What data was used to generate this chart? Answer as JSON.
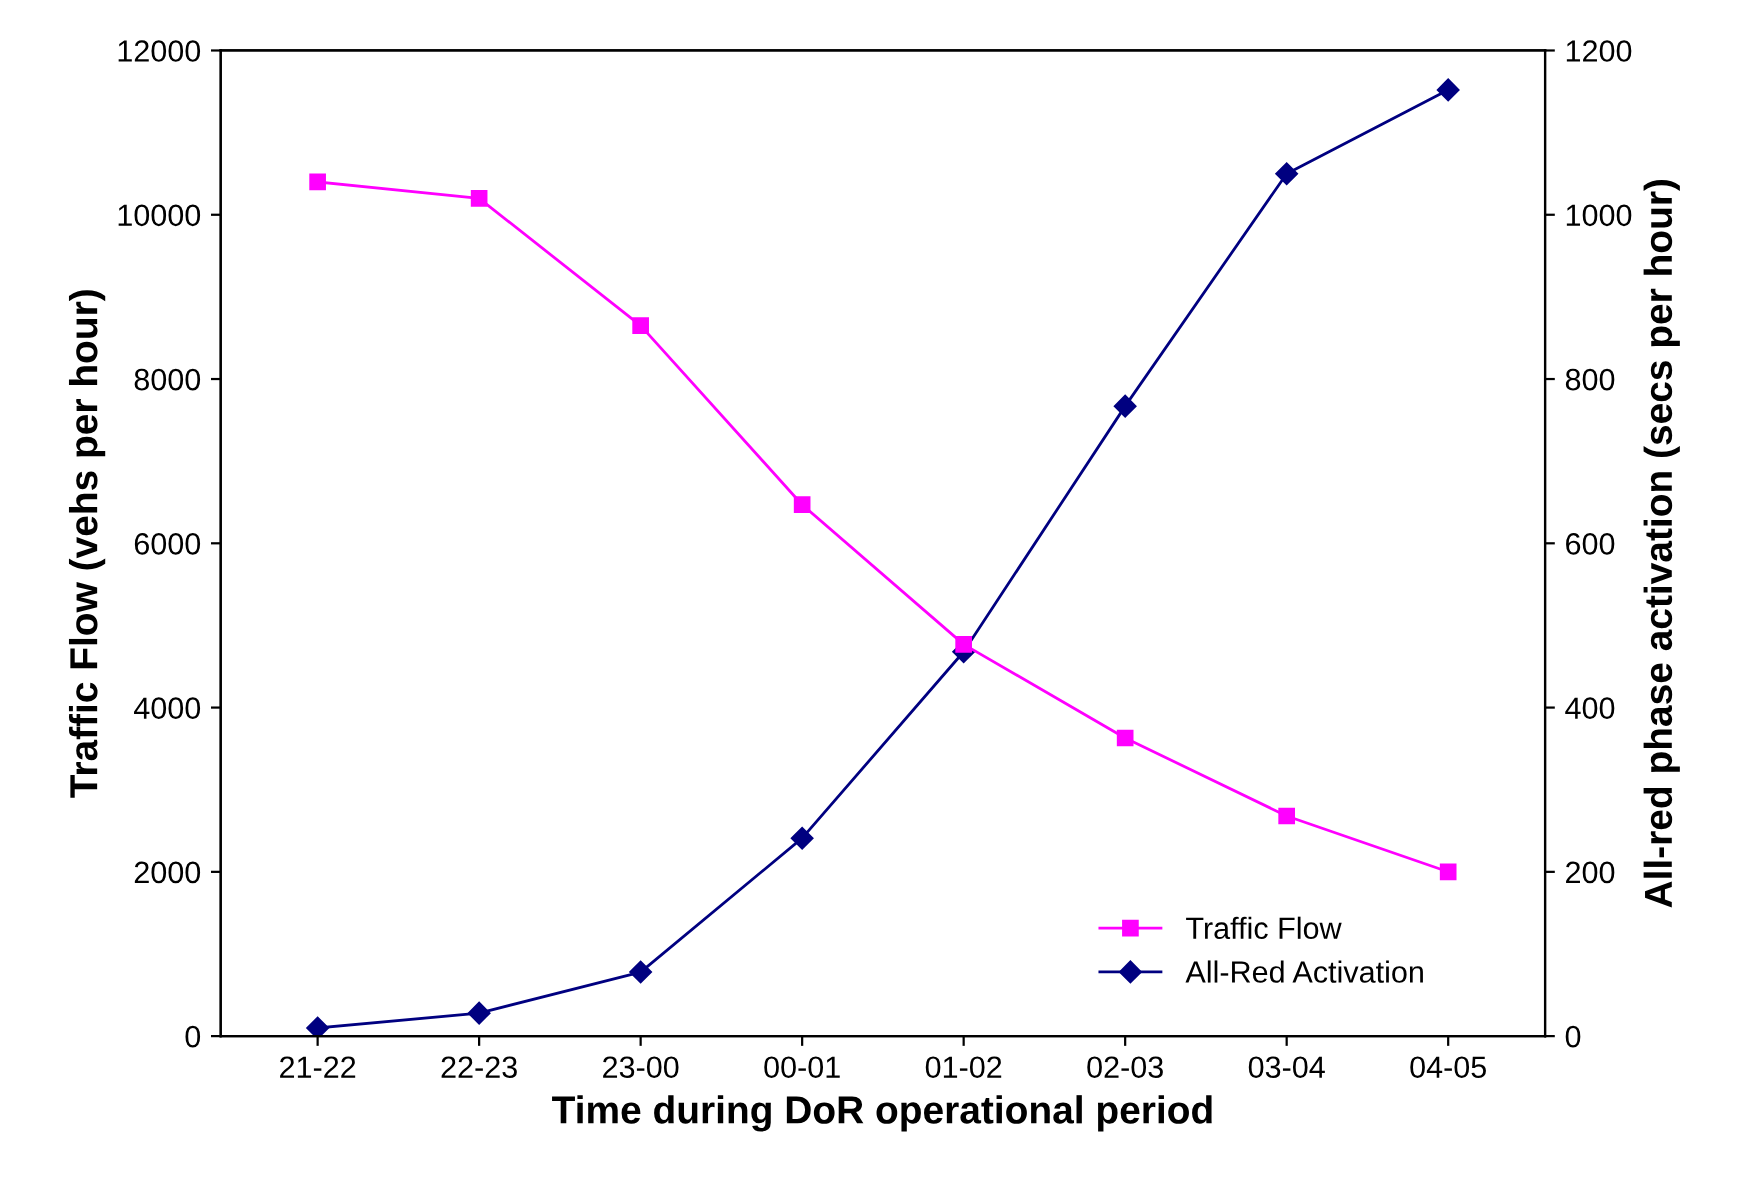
{
  "chart_data": {
    "type": "line",
    "xlabel": "Time during DoR operational period",
    "ylabel": "Traffic Flow (vehs per hour)",
    "y2label": "All-red phase activation (secs per hour)",
    "categories": [
      "21-22",
      "22-23",
      "23-00",
      "00-01",
      "01-02",
      "02-03",
      "03-04",
      "04-05"
    ],
    "series": [
      {
        "name": "Traffic Flow",
        "color": "#ff00ff",
        "marker": "square",
        "values": [
          10400,
          10200,
          8650,
          6470,
          4770,
          3630,
          2680,
          2000
        ]
      },
      {
        "name": "All-Red Activation",
        "color": "#000080",
        "marker": "diamond",
        "axis": "y2",
        "values": [
          10,
          28,
          78,
          241,
          468,
          767,
          1050,
          1152
        ]
      }
    ],
    "ylim": [
      0,
      12000
    ],
    "yticks": [
      0,
      2000,
      4000,
      6000,
      8000,
      10000,
      12000
    ],
    "y2lim": [
      0,
      1200
    ],
    "y2ticks": [
      0,
      200,
      400,
      600,
      800,
      1000,
      1200
    ],
    "grid": false,
    "legend": "bottom right",
    "line_style": "solid"
  }
}
